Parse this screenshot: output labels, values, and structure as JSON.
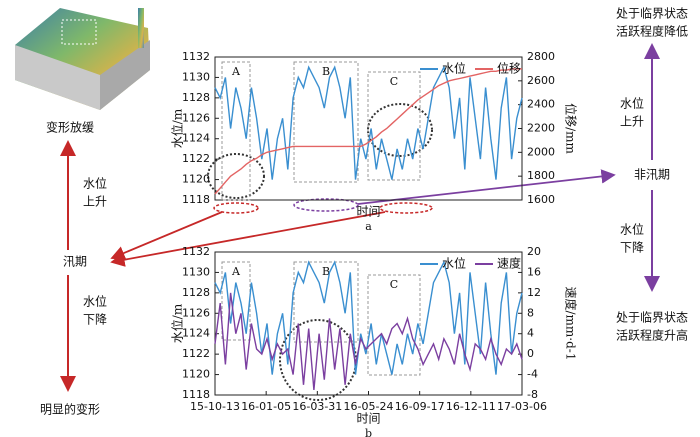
{
  "chart_data": [
    {
      "type": "line",
      "caption": "a",
      "xlabel": "时间",
      "ylabel": "水位/m",
      "y2label": "位移/mm",
      "ylim": [
        1118,
        1132
      ],
      "yticks": [
        1118,
        1120,
        1122,
        1124,
        1126,
        1128,
        1130,
        1132
      ],
      "y2lim": [
        1600,
        2800
      ],
      "y2ticks": [
        1600,
        1800,
        2000,
        2200,
        2400,
        2600,
        2800
      ],
      "series": [
        {
          "name": "水位",
          "color": "#3a8fd0",
          "values": [
            1129,
            1128,
            1130,
            1125,
            1129,
            1127,
            1124,
            1129,
            1126,
            1122,
            1125,
            1120,
            1124,
            1126,
            1121,
            1128,
            1130,
            1129,
            1131,
            1130,
            1129,
            1127,
            1130,
            1131,
            1129,
            1126,
            1130,
            1120,
            1124,
            1122,
            1125,
            1121,
            1124,
            1122,
            1120,
            1123,
            1121,
            1124,
            1122,
            1125,
            1123,
            1126,
            1129,
            1130,
            1131,
            1129,
            1124,
            1128,
            1121,
            1130,
            1126,
            1122,
            1129,
            1124,
            1120,
            1127,
            1130,
            1122,
            1126,
            1128
          ]
        },
        {
          "name": "位移",
          "color": "#e36464",
          "axis": "y2",
          "values": [
            1650,
            1700,
            1750,
            1800,
            1830,
            1860,
            1900,
            1930,
            1950,
            1980,
            2000,
            2010,
            2020,
            2030,
            2040,
            2050,
            2050,
            2050,
            2050,
            2050,
            2050,
            2050,
            2050,
            2050,
            2050,
            2050,
            2050,
            2050,
            2050,
            2070,
            2100,
            2130,
            2170,
            2200,
            2240,
            2280,
            2320,
            2360,
            2400,
            2440,
            2470,
            2500,
            2530,
            2560,
            2580,
            2600,
            2610,
            2620,
            2630,
            2640,
            2650,
            2660,
            2670,
            2680,
            2680,
            2690,
            2690,
            2700,
            2700,
            2700
          ]
        }
      ],
      "annotations": [
        "A",
        "B",
        "C"
      ]
    },
    {
      "type": "line",
      "caption": "b",
      "xlabel": "时间",
      "ylabel": "水位/m",
      "y2label": "速度/mm·d-1",
      "ylim": [
        1118,
        1132
      ],
      "yticks": [
        1118,
        1120,
        1122,
        1124,
        1126,
        1128,
        1130,
        1132
      ],
      "y2lim": [
        -8,
        20
      ],
      "y2ticks": [
        -8,
        -4,
        0,
        4,
        8,
        12,
        16,
        20
      ],
      "xticks": [
        "15-10-13",
        "16-01-05",
        "16-03-31",
        "16-05-24",
        "16-09-17",
        "16-12-11",
        "17-03-06"
      ],
      "series": [
        {
          "name": "水位",
          "color": "#3a8fd0",
          "values": [
            1129,
            1128,
            1130,
            1125,
            1129,
            1127,
            1124,
            1129,
            1126,
            1122,
            1125,
            1120,
            1124,
            1126,
            1121,
            1128,
            1130,
            1129,
            1131,
            1130,
            1129,
            1127,
            1130,
            1131,
            1129,
            1126,
            1130,
            1120,
            1124,
            1122,
            1125,
            1121,
            1124,
            1122,
            1120,
            1123,
            1121,
            1124,
            1122,
            1125,
            1123,
            1126,
            1129,
            1130,
            1131,
            1129,
            1124,
            1128,
            1121,
            1130,
            1126,
            1122,
            1129,
            1124,
            1120,
            1127,
            1130,
            1122,
            1126,
            1128
          ]
        },
        {
          "name": "速度",
          "color": "#7b3fa0",
          "axis": "y2",
          "values": [
            2,
            10,
            -2,
            12,
            4,
            8,
            -3,
            6,
            1,
            0,
            3,
            -1,
            2,
            0,
            1,
            -4,
            6,
            -6,
            5,
            -7,
            4,
            -5,
            7,
            -3,
            5,
            -6,
            4,
            -2,
            3,
            1,
            2,
            3,
            4,
            2,
            5,
            6,
            4,
            7,
            3,
            1,
            -2,
            0,
            2,
            -1,
            3,
            1,
            -2,
            4,
            0,
            -3,
            2,
            1,
            -1,
            3,
            0,
            -2,
            1,
            0,
            2,
            -1
          ]
        }
      ],
      "annotations": [
        "A",
        "B",
        "C"
      ]
    }
  ],
  "diagram": {
    "left": {
      "top": "变形放缓",
      "up": [
        "水位",
        "上升"
      ],
      "center": "汛期",
      "down": [
        "水位",
        "下降"
      ],
      "bottom": "明显的变形"
    },
    "right": {
      "top": [
        "处于临界状态",
        "活跃程度降低"
      ],
      "up": [
        "水位",
        "上升"
      ],
      "center": "非汛期",
      "down": [
        "水位",
        "下降"
      ],
      "bottom": [
        "处于临界状态",
        "活跃程度升高"
      ]
    }
  }
}
